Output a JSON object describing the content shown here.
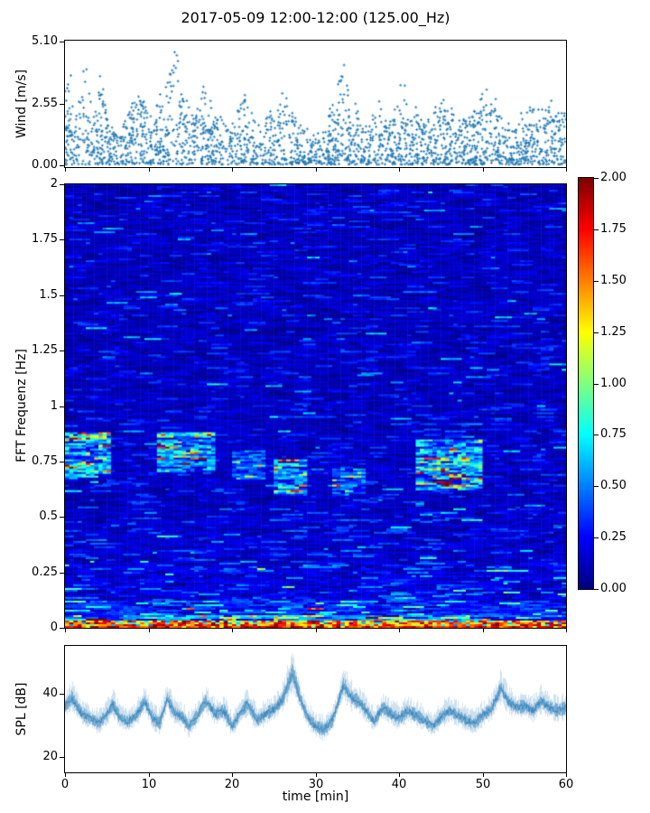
{
  "title": "2017-05-09 12:00-12:00 (125.00_Hz)",
  "colors": {
    "accent_blue": "#1f77b4",
    "axis": "#000000",
    "background": "#ffffff",
    "colormap_low": "#00008f",
    "colormap_high": "#8f0000"
  },
  "chart_data": [
    {
      "id": "wind",
      "type": "scatter",
      "marker": "+",
      "color": "#1f77b4",
      "ylabel": "Wind [m/s]",
      "yticks": [
        {
          "v": 5.1,
          "label": "5.10"
        },
        {
          "v": 2.55,
          "label": "2.55"
        },
        {
          "v": 0.0,
          "label": "0.00"
        }
      ],
      "ylim": [
        -0.07,
        5.15
      ],
      "xlim": [
        0,
        60
      ],
      "xticks_unlabeled": [
        0,
        10,
        20,
        30,
        40,
        50,
        60
      ],
      "seed": 7,
      "n_samples": 2400,
      "envelope_max": [
        [
          0,
          3.2
        ],
        [
          0.7,
          3.9
        ],
        [
          1.5,
          2.3
        ],
        [
          2.5,
          4.9
        ],
        [
          3.2,
          2.1
        ],
        [
          4.3,
          3.7
        ],
        [
          5.5,
          1.7
        ],
        [
          6.5,
          1.4
        ],
        [
          7.5,
          2.3
        ],
        [
          8.5,
          3.5
        ],
        [
          9.5,
          2.9
        ],
        [
          10.5,
          1.9
        ],
        [
          11.5,
          3.0
        ],
        [
          12.5,
          4.6
        ],
        [
          13.3,
          5.0
        ],
        [
          14.2,
          3.1
        ],
        [
          15.3,
          2.0
        ],
        [
          16.5,
          3.3
        ],
        [
          17.5,
          2.7
        ],
        [
          18.5,
          2.3
        ],
        [
          19.5,
          1.5
        ],
        [
          20.5,
          2.5
        ],
        [
          21.3,
          3.3
        ],
        [
          22.3,
          2.5
        ],
        [
          23.5,
          1.3
        ],
        [
          24.5,
          2.4
        ],
        [
          25.5,
          2.7
        ],
        [
          26.5,
          3.1
        ],
        [
          27.5,
          2.2
        ],
        [
          28.5,
          1.7
        ],
        [
          29.5,
          1.3
        ],
        [
          30.5,
          1.6
        ],
        [
          31.5,
          2.1
        ],
        [
          32.5,
          3.0
        ],
        [
          33.3,
          5.0
        ],
        [
          34.2,
          2.7
        ],
        [
          35.2,
          2.4
        ],
        [
          36.2,
          1.7
        ],
        [
          37.3,
          2.8
        ],
        [
          38.3,
          2.2
        ],
        [
          39.3,
          1.9
        ],
        [
          40.3,
          3.9
        ],
        [
          41.3,
          2.6
        ],
        [
          42.3,
          2.3
        ],
        [
          43.3,
          1.7
        ],
        [
          44.3,
          2.4
        ],
        [
          45.2,
          3.0
        ],
        [
          46.2,
          2.4
        ],
        [
          47.2,
          2.1
        ],
        [
          48.2,
          2.0
        ],
        [
          49.2,
          2.6
        ],
        [
          50.2,
          3.0
        ],
        [
          51.2,
          3.4
        ],
        [
          52.2,
          2.0
        ],
        [
          53.2,
          1.7
        ],
        [
          54.2,
          1.8
        ],
        [
          55.2,
          2.8
        ],
        [
          56.2,
          2.3
        ],
        [
          57.2,
          2.4
        ],
        [
          58.2,
          3.0
        ],
        [
          59.2,
          2.6
        ],
        [
          60,
          2.4
        ]
      ]
    },
    {
      "id": "fft",
      "type": "heatmap",
      "colormap": "jet",
      "ylabel": "FFT Frequenz [Hz]",
      "yticks": [
        {
          "v": 2,
          "label": "2"
        },
        {
          "v": 1.75,
          "label": "1.75"
        },
        {
          "v": 1.5,
          "label": "1.5"
        },
        {
          "v": 1.25,
          "label": "1.25"
        },
        {
          "v": 1,
          "label": "1"
        },
        {
          "v": 0.75,
          "label": "0.75"
        },
        {
          "v": 0.5,
          "label": "0.5"
        },
        {
          "v": 0.25,
          "label": "0.25"
        },
        {
          "v": 0,
          "label": "0"
        }
      ],
      "ylim": [
        0,
        2
      ],
      "xlim": [
        0,
        60
      ],
      "xticks_unlabeled": [
        0,
        10,
        20,
        30,
        40,
        50,
        60
      ],
      "vmin": 0,
      "vmax": 2,
      "seed": 11,
      "grid": {
        "rows": 245,
        "cols": 120
      },
      "freq_base_levels": [
        {
          "fmax": 0.03,
          "level": 1.05
        },
        {
          "fmax": 0.06,
          "level": 0.55
        },
        {
          "fmax": 0.12,
          "level": 0.34
        },
        {
          "fmax": 0.3,
          "level": 0.21
        },
        {
          "fmax": 0.55,
          "level": 0.17
        },
        {
          "fmax": 1.0,
          "level": 0.15
        },
        {
          "fmax": 2.0,
          "level": 0.14
        }
      ],
      "elevated_windows": [
        {
          "t0": 0,
          "t1": 5.5,
          "f0": 0.68,
          "f1": 0.88,
          "amp": 0.5
        },
        {
          "t0": 11,
          "t1": 18,
          "f0": 0.7,
          "f1": 0.88,
          "amp": 0.45
        },
        {
          "t0": 20,
          "t1": 24,
          "f0": 0.66,
          "f1": 0.8,
          "amp": 0.25
        },
        {
          "t0": 25,
          "t1": 29,
          "f0": 0.6,
          "f1": 0.76,
          "amp": 0.4
        },
        {
          "t0": 32,
          "t1": 36,
          "f0": 0.6,
          "f1": 0.72,
          "amp": 0.3
        },
        {
          "t0": 42,
          "t1": 50,
          "f0": 0.62,
          "f1": 0.85,
          "amp": 0.5
        }
      ]
    },
    {
      "id": "spl",
      "type": "line",
      "color": "#1f77b4",
      "ylabel": "SPL [dB]",
      "xlabel": "time [min]",
      "yticks": [
        {
          "v": 40,
          "label": "40"
        },
        {
          "v": 20,
          "label": "20"
        }
      ],
      "ylim": [
        15,
        55
      ],
      "xlim": [
        0,
        60
      ],
      "xticks": [
        {
          "v": 0,
          "label": "0"
        },
        {
          "v": 10,
          "label": "10"
        },
        {
          "v": 20,
          "label": "20"
        },
        {
          "v": 30,
          "label": "30"
        },
        {
          "v": 40,
          "label": "40"
        },
        {
          "v": 50,
          "label": "50"
        },
        {
          "v": 60,
          "label": "60"
        }
      ],
      "seed": 23,
      "keypoints": [
        [
          0,
          36
        ],
        [
          0.8,
          38.5
        ],
        [
          2,
          33.5
        ],
        [
          3,
          32
        ],
        [
          4,
          30.5
        ],
        [
          5,
          33.5
        ],
        [
          5.7,
          36.5
        ],
        [
          6.5,
          32.5
        ],
        [
          7.5,
          31
        ],
        [
          8.5,
          33
        ],
        [
          9.5,
          37.5
        ],
        [
          10.5,
          32
        ],
        [
          11.3,
          30.5
        ],
        [
          12.2,
          38.5
        ],
        [
          13,
          34
        ],
        [
          14,
          32.5
        ],
        [
          14.8,
          29.5
        ],
        [
          15.8,
          33
        ],
        [
          16.8,
          37.5
        ],
        [
          18,
          33.5
        ],
        [
          19,
          34.5
        ],
        [
          20,
          29.5
        ],
        [
          21,
          34
        ],
        [
          21.8,
          36.5
        ],
        [
          23,
          31.5
        ],
        [
          24,
          33.5
        ],
        [
          25,
          35
        ],
        [
          26,
          38
        ],
        [
          27.2,
          46
        ],
        [
          28.3,
          37
        ],
        [
          29,
          32.5
        ],
        [
          30,
          29.5
        ],
        [
          31,
          28.5
        ],
        [
          32,
          31.5
        ],
        [
          33.3,
          42.5
        ],
        [
          34.3,
          38.5
        ],
        [
          35.3,
          37
        ],
        [
          36.3,
          33.5
        ],
        [
          37,
          31
        ],
        [
          38,
          35.5
        ],
        [
          39,
          33.5
        ],
        [
          40,
          32
        ],
        [
          41,
          34.5
        ],
        [
          42,
          33
        ],
        [
          43,
          31.5
        ],
        [
          44,
          29.5
        ],
        [
          45,
          32.5
        ],
        [
          46,
          34.5
        ],
        [
          47,
          33
        ],
        [
          48,
          31.5
        ],
        [
          49,
          30.5
        ],
        [
          50,
          33
        ],
        [
          51,
          35
        ],
        [
          52.2,
          41.5
        ],
        [
          53,
          37.5
        ],
        [
          54,
          35.5
        ],
        [
          55,
          36
        ],
        [
          56,
          34.5
        ],
        [
          57,
          37.5
        ],
        [
          58,
          35.5
        ],
        [
          59,
          34.5
        ],
        [
          60,
          35.5
        ]
      ]
    }
  ],
  "colorbar": {
    "colormap": "jet",
    "vmin": 0,
    "vmax": 2,
    "ticks": [
      {
        "v": 2.0,
        "label": "2.00"
      },
      {
        "v": 1.75,
        "label": "1.75"
      },
      {
        "v": 1.5,
        "label": "1.50"
      },
      {
        "v": 1.25,
        "label": "1.25"
      },
      {
        "v": 1.0,
        "label": "1.00"
      },
      {
        "v": 0.75,
        "label": "0.75"
      },
      {
        "v": 0.5,
        "label": "0.50"
      },
      {
        "v": 0.25,
        "label": "0.25"
      },
      {
        "v": 0.0,
        "label": "0.00"
      }
    ]
  }
}
